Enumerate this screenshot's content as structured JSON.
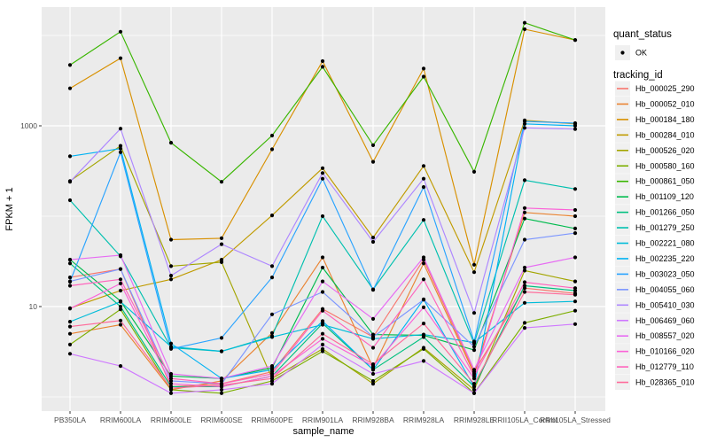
{
  "figure": {
    "y_axis_label": "FPKM + 1",
    "x_axis_label": "sample_name",
    "legend": {
      "quant_status": {
        "title": "quant_status",
        "items": [
          {
            "label": "OK",
            "marker": "black-point"
          }
        ]
      },
      "tracking_id": {
        "title": "tracking_id"
      }
    }
  },
  "chart_data": {
    "type": "line",
    "title": "",
    "xlabel": "sample_name",
    "ylabel": "FPKM + 1",
    "y_scale": "log10",
    "grid": true,
    "legend_position": "right",
    "panel_bg": "#EBEBEB",
    "grid_color": "#FFFFFF",
    "key_bg": "#F0F0F0",
    "point_color": "#000000",
    "point_shape": "filled-circle",
    "axis_text_color": "#4D4D4D",
    "y_ticks": [
      {
        "label": "1000",
        "value": 1000
      },
      {
        "label": "10",
        "value": 10
      }
    ],
    "y_minor_gridlines": [
      1,
      100,
      10000
    ],
    "categories": [
      "PB350LA",
      "RRIM600LA",
      "RRIM600LE",
      "RRIM600SE",
      "RRIM600PE",
      "RRIM901LA",
      "RRIM928BA",
      "RRIM928LA",
      "RRIM928LE",
      "RRII105LA_Control",
      "RRII105LA_Stressed"
    ],
    "series": [
      {
        "name": "Hb_000025_290",
        "color": "#F8766D",
        "values": [
          21,
          26,
          1.3,
          1.4,
          1.9,
          9.4,
          4.6,
          33,
          1.9,
          16,
          14
        ]
      },
      {
        "name": "Hb_000052_010",
        "color": "#EA8331",
        "values": [
          5.0,
          6.3,
          1.2,
          1.5,
          5.1,
          35,
          2.1,
          30,
          1.8,
          110,
          100
        ]
      },
      {
        "name": "Hb_000184_180",
        "color": "#D89000",
        "values": [
          2600,
          5600,
          55,
          57,
          550,
          5200,
          400,
          4300,
          29,
          11700,
          8900
        ]
      },
      {
        "name": "Hb_000284_010",
        "color": "#C09B00",
        "values": [
          9.6,
          15,
          20,
          33,
          102,
          340,
          58,
          360,
          24,
          1150,
          1050
        ]
      },
      {
        "name": "Hb_000526_020",
        "color": "#A3A500",
        "values": [
          245,
          600,
          28,
          31,
          1.6,
          3.4,
          1.4,
          3.5,
          1.2,
          25,
          19
        ]
      },
      {
        "name": "Hb_000580_160",
        "color": "#7CAE00",
        "values": [
          3.8,
          9.3,
          1.2,
          1.1,
          1.5,
          3.2,
          1.5,
          3.4,
          1.1,
          6.6,
          9.0
        ]
      },
      {
        "name": "Hb_000861_050",
        "color": "#39B600",
        "values": [
          4700,
          11000,
          650,
          240,
          780,
          4500,
          610,
          3500,
          310,
          13800,
          8900
        ]
      },
      {
        "name": "Hb_001109_120",
        "color": "#00BB4E",
        "values": [
          33,
          11.5,
          1.7,
          1.6,
          2.1,
          27,
          4.9,
          4.8,
          3.3,
          94,
          73
        ]
      },
      {
        "name": "Hb_001266_050",
        "color": "#00C07F",
        "values": [
          30,
          10,
          1.3,
          1.3,
          1.7,
          6.5,
          2.0,
          4.6,
          1.3,
          17,
          15
        ]
      },
      {
        "name": "Hb_001279_250",
        "color": "#00C0AF",
        "values": [
          150,
          36,
          3.5,
          3.2,
          4.7,
          100,
          15.5,
          91,
          3.9,
          250,
          200
        ]
      },
      {
        "name": "Hb_002221_080",
        "color": "#00BCD9",
        "values": [
          6.8,
          11.3,
          3.6,
          3.2,
          4.6,
          6.3,
          4.4,
          4.9,
          4.0,
          11,
          11.4
        ]
      },
      {
        "name": "Hb_002235_220",
        "color": "#00B2F3",
        "values": [
          460,
          560,
          3.9,
          1.6,
          2.0,
          6.9,
          2.0,
          12,
          1.3,
          1050,
          1000
        ]
      },
      {
        "name": "Hb_003023_050",
        "color": "#29A3FF",
        "values": [
          18.8,
          510,
          3.4,
          4.5,
          21,
          260,
          15.3,
          210,
          4.1,
          1120,
          1070
        ]
      },
      {
        "name": "Hb_004055_060",
        "color": "#7C96FF",
        "values": [
          19,
          26,
          1.5,
          1.4,
          8.2,
          14.5,
          4.6,
          11.9,
          3.6,
          55,
          65
        ]
      },
      {
        "name": "Hb_005410_030",
        "color": "#AE87FF",
        "values": [
          240,
          930,
          22,
          49,
          28,
          300,
          52,
          260,
          8.5,
          950,
          920
        ]
      },
      {
        "name": "Hb_006469_060",
        "color": "#CF78FF",
        "values": [
          3.0,
          2.2,
          1.1,
          1.2,
          1.4,
          3.8,
          1.8,
          2.5,
          1.1,
          5.8,
          6.4
        ]
      },
      {
        "name": "Hb_008557_020",
        "color": "#E76BF3",
        "values": [
          33,
          37,
          1.8,
          1.6,
          2.2,
          19,
          7.3,
          35,
          2.0,
          27,
          35
        ]
      },
      {
        "name": "Hb_010166_020",
        "color": "#FB61D7",
        "values": [
          9.5,
          18,
          1.4,
          1.3,
          1.7,
          4.4,
          2.2,
          9.8,
          1.6,
          123,
          117
        ]
      },
      {
        "name": "Hb_012779_110",
        "color": "#FF62BC",
        "values": [
          17,
          20,
          1.6,
          1.4,
          1.8,
          9.0,
          3.5,
          20,
          1.7,
          18.6,
          16
        ]
      },
      {
        "name": "Hb_028365_010",
        "color": "#FF6A9A",
        "values": [
          6.0,
          7.0,
          1.25,
          1.35,
          1.6,
          5.0,
          2.3,
          6.5,
          1.4,
          14.5,
          13.5
        ]
      }
    ]
  }
}
